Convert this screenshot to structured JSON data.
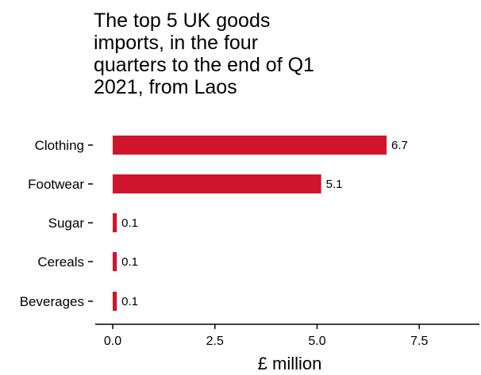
{
  "chart_data": {
    "type": "bar",
    "orientation": "horizontal",
    "title_lines": [
      "The top 5 UK goods",
      "imports, in the four",
      "quarters to the end of Q1",
      "2021, from Laos"
    ],
    "categories": [
      "Clothing",
      "Footwear",
      "Sugar",
      "Cereals",
      "Beverages"
    ],
    "values": [
      6.7,
      5.1,
      0.1,
      0.1,
      0.1
    ],
    "value_labels": [
      "6.7",
      "5.1",
      "0.1",
      "0.1",
      "0.1"
    ],
    "xlabel": "£ million",
    "ylabel": "",
    "xlim": [
      0,
      8.8
    ],
    "x_ticks": [
      0,
      2.5,
      5,
      7.5
    ],
    "x_tick_labels": [
      "0.0",
      "2.5",
      "5.0",
      "7.5"
    ],
    "bar_color": "#cf142b",
    "grid": false,
    "legend": "none"
  }
}
